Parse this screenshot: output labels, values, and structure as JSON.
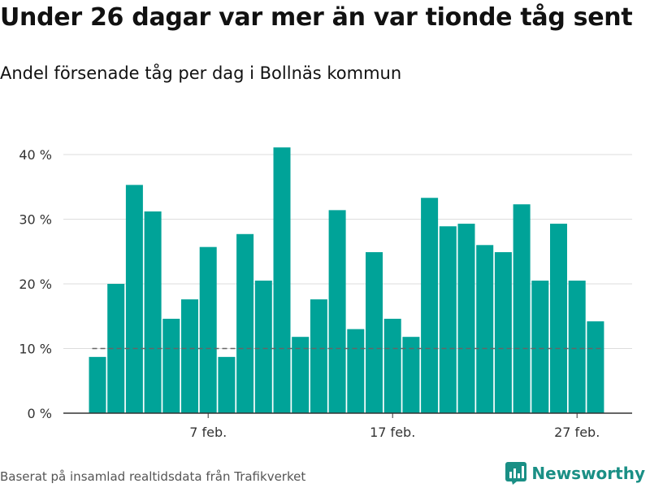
{
  "title": "Under 26 dagar var mer än var tionde tåg sent",
  "subtitle": "Andel försenade tåg per dag i Bollnäs kommun",
  "footer": "Baserat på insamlad realtidsdata från Trafikverket",
  "brand": {
    "name": "Newsworthy",
    "icon": "bar-chart-logo-icon"
  },
  "colors": {
    "bar": "#00a398",
    "threshold_line": "#666666",
    "grid": "#dddddd",
    "axis": "#333333",
    "brand": "#1a8f85"
  },
  "chart_data": {
    "type": "bar",
    "x_unit": "day",
    "x": [
      "2025-02-01",
      "2025-02-02",
      "2025-02-03",
      "2025-02-04",
      "2025-02-05",
      "2025-02-06",
      "2025-02-07",
      "2025-02-08",
      "2025-02-09",
      "2025-02-10",
      "2025-02-11",
      "2025-02-12",
      "2025-02-13",
      "2025-02-14",
      "2025-02-15",
      "2025-02-16",
      "2025-02-17",
      "2025-02-18",
      "2025-02-19",
      "2025-02-20",
      "2025-02-21",
      "2025-02-22",
      "2025-02-23",
      "2025-02-24",
      "2025-02-25",
      "2025-02-26",
      "2025-02-27",
      "2025-02-28"
    ],
    "values": [
      8.7,
      20.0,
      35.3,
      31.2,
      14.6,
      17.6,
      25.7,
      8.7,
      27.7,
      20.5,
      41.1,
      11.8,
      17.6,
      31.4,
      13.0,
      24.9,
      14.6,
      11.8,
      33.3,
      28.9,
      29.3,
      26.0,
      24.9,
      32.3,
      20.5,
      29.3,
      20.5,
      14.2
    ],
    "ylim": [
      0,
      42
    ],
    "yticks": [
      0,
      10,
      20,
      30,
      40
    ],
    "ytick_labels": [
      "0 %",
      "10 %",
      "20 %",
      "30 %",
      "40 %"
    ],
    "xticks": [
      {
        "label": "7 feb.",
        "index": 6
      },
      {
        "label": "17 feb.",
        "index": 16
      },
      {
        "label": "27 feb.",
        "index": 26
      }
    ],
    "threshold": 10,
    "grid": true,
    "xlabel": "",
    "ylabel": ""
  }
}
